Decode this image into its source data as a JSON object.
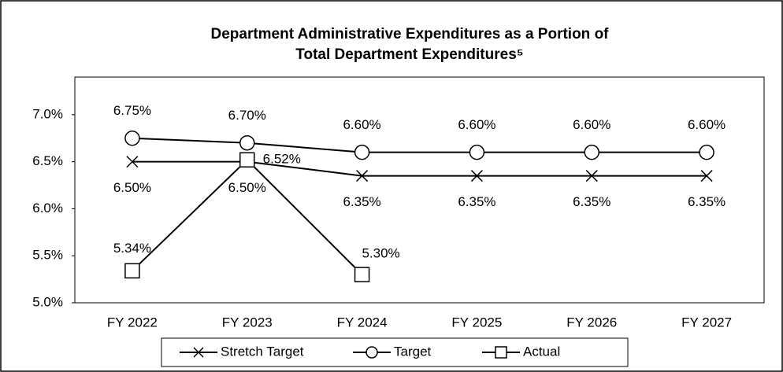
{
  "chart_data": {
    "type": "line",
    "title": "Department Administrative Expenditures as a Portion of Total Department Expenditures⁵",
    "categories": [
      "FY 2022",
      "FY 2023",
      "FY 2024",
      "FY 2025",
      "FY 2026",
      "FY 2027"
    ],
    "series": [
      {
        "name": "Stretch Target",
        "color": "#000000",
        "marker": "x",
        "values": [
          6.5,
          6.5,
          6.35,
          6.35,
          6.35,
          6.35
        ],
        "value_labels": [
          "6.50%",
          "6.50%",
          "6.35%",
          "6.35%",
          "6.35%",
          "6.35%"
        ]
      },
      {
        "name": "Target",
        "color": "#000000",
        "marker": "circle",
        "values": [
          6.75,
          6.7,
          6.6,
          6.6,
          6.6,
          6.6
        ],
        "value_labels": [
          "6.75%",
          "6.70%",
          "6.60%",
          "6.60%",
          "6.60%",
          "6.60%"
        ]
      },
      {
        "name": "Actual",
        "color": "#000000",
        "marker": "square",
        "values": [
          5.34,
          6.52,
          5.3,
          null,
          null,
          null
        ],
        "value_labels": [
          "5.34%",
          "6.52%",
          "5.30%",
          null,
          null,
          null
        ]
      }
    ],
    "ylim": [
      5,
      7.4
    ],
    "yticks": [
      {
        "value": 5,
        "label": "5.0%"
      },
      {
        "value": 5.5,
        "label": "5.5%"
      },
      {
        "value": 6,
        "label": "6.0%"
      },
      {
        "value": 6.5,
        "label": "6.5%"
      },
      {
        "value": 7,
        "label": "7.0%"
      }
    ],
    "legend": "bottom"
  }
}
